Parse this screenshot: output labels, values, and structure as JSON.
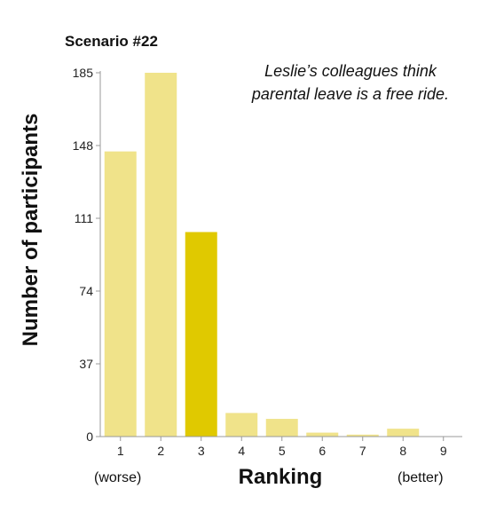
{
  "chart_data": {
    "type": "bar",
    "title": "Scenario #22",
    "annotation_lines": [
      "Leslie’s colleagues think",
      "parental leave is a free ride."
    ],
    "xlabel": "Ranking",
    "ylabel": "Number of participants",
    "x_left_label": "(worse)",
    "x_right_label": "(better)",
    "categories": [
      "1",
      "2",
      "3",
      "4",
      "5",
      "6",
      "7",
      "8",
      "9"
    ],
    "values": [
      145,
      185,
      104,
      12,
      9,
      2,
      1,
      4,
      0
    ],
    "highlight_category": "3",
    "yticks": [
      "0",
      "37",
      "74",
      "111",
      "148",
      "185"
    ],
    "ylim": [
      0,
      185
    ],
    "grid": false,
    "colors": {
      "bar": "#f0e38a",
      "bar_highlight": "#e0c900",
      "axis": "#999999"
    }
  }
}
